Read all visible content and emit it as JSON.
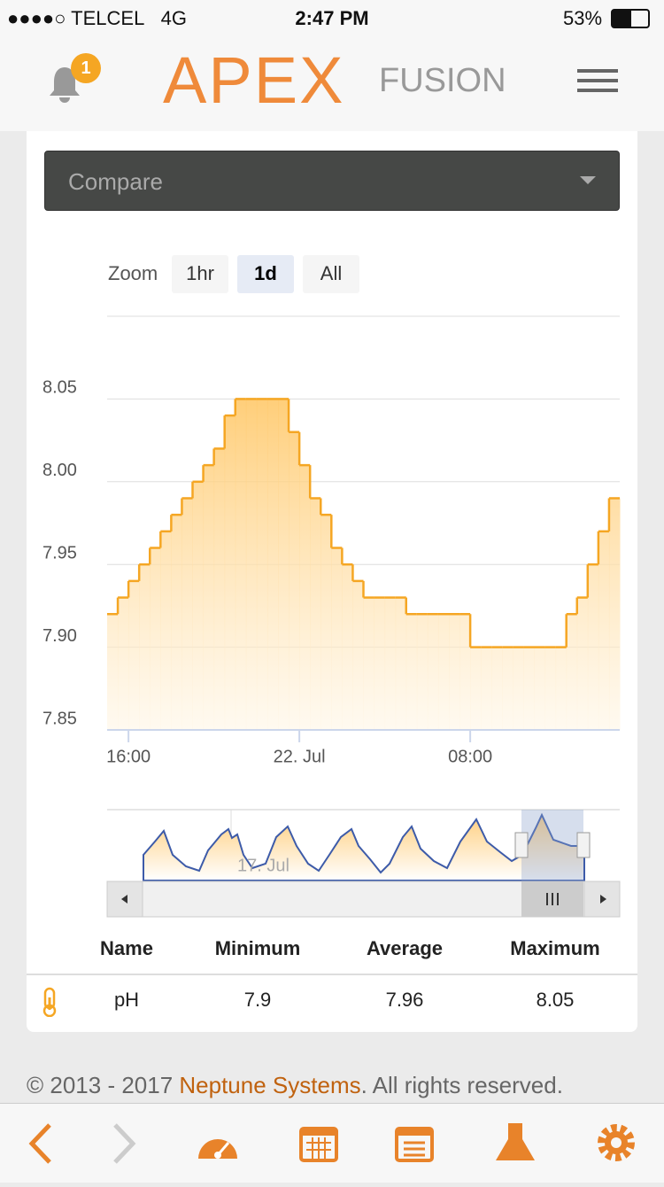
{
  "status_bar": {
    "carrier": "TELCEL",
    "network": "4G",
    "time": "2:47 PM",
    "battery": "53%"
  },
  "header": {
    "badge": "1",
    "logo": "APEX",
    "logo_suffix": "FUSION"
  },
  "compare": {
    "label": "Compare"
  },
  "zoom": {
    "label": "Zoom",
    "buttons": [
      "1hr",
      "1d",
      "All"
    ],
    "active": "1d"
  },
  "chart_data": {
    "type": "step-area",
    "color": "#f5a623",
    "x": [
      "15:00",
      "15:30",
      "16:00",
      "16:30",
      "17:00",
      "17:30",
      "18:00",
      "18:30",
      "19:00",
      "19:30",
      "20:00",
      "20:30",
      "21:00",
      "21:30",
      "22:00",
      "22:30",
      "23:00",
      "23:30",
      "00:00",
      "00:30",
      "01:00",
      "01:30",
      "02:00",
      "02:30",
      "03:00",
      "03:30",
      "04:00",
      "04:30",
      "05:00",
      "05:30",
      "06:00",
      "06:30",
      "07:00",
      "07:30",
      "08:00",
      "08:30",
      "09:00",
      "09:30",
      "10:00",
      "10:30",
      "11:00",
      "11:30",
      "12:00",
      "12:30",
      "13:00",
      "13:30",
      "14:00",
      "14:30"
    ],
    "series": [
      {
        "name": "pH",
        "color": "#f5a623",
        "values": [
          7.92,
          7.93,
          7.94,
          7.95,
          7.96,
          7.97,
          7.98,
          7.99,
          8.0,
          8.01,
          8.02,
          8.04,
          8.05,
          8.05,
          8.05,
          8.05,
          8.05,
          8.03,
          8.01,
          7.99,
          7.98,
          7.96,
          7.95,
          7.94,
          7.93,
          7.93,
          7.93,
          7.93,
          7.92,
          7.92,
          7.92,
          7.92,
          7.92,
          7.92,
          7.9,
          7.9,
          7.9,
          7.9,
          7.9,
          7.9,
          7.9,
          7.9,
          7.9,
          7.92,
          7.93,
          7.95,
          7.97,
          7.99
        ]
      }
    ],
    "ylim": [
      7.85,
      8.1
    ],
    "yticks": [
      7.85,
      {
        "value": 7.9,
        "label": "7.90"
      },
      7.95,
      {
        "value": 8,
        "label": "8.00"
      },
      8.05
    ],
    "xticks": [
      "16:00",
      {
        "value": "00:00",
        "label": "22. Jul"
      },
      "08:00"
    ],
    "grid": true,
    "navigator_label": "17. Jul"
  },
  "table": {
    "header": [
      "Name",
      "Minimum",
      "Average",
      "Maximum"
    ],
    "rows": [
      [
        "pH",
        "7.9",
        "7.96",
        "8.05"
      ]
    ]
  },
  "footer": {
    "prefix": "© 2013 - 2017 ",
    "link": "Neptune Systems",
    "suffix": ". All rights reserved."
  }
}
